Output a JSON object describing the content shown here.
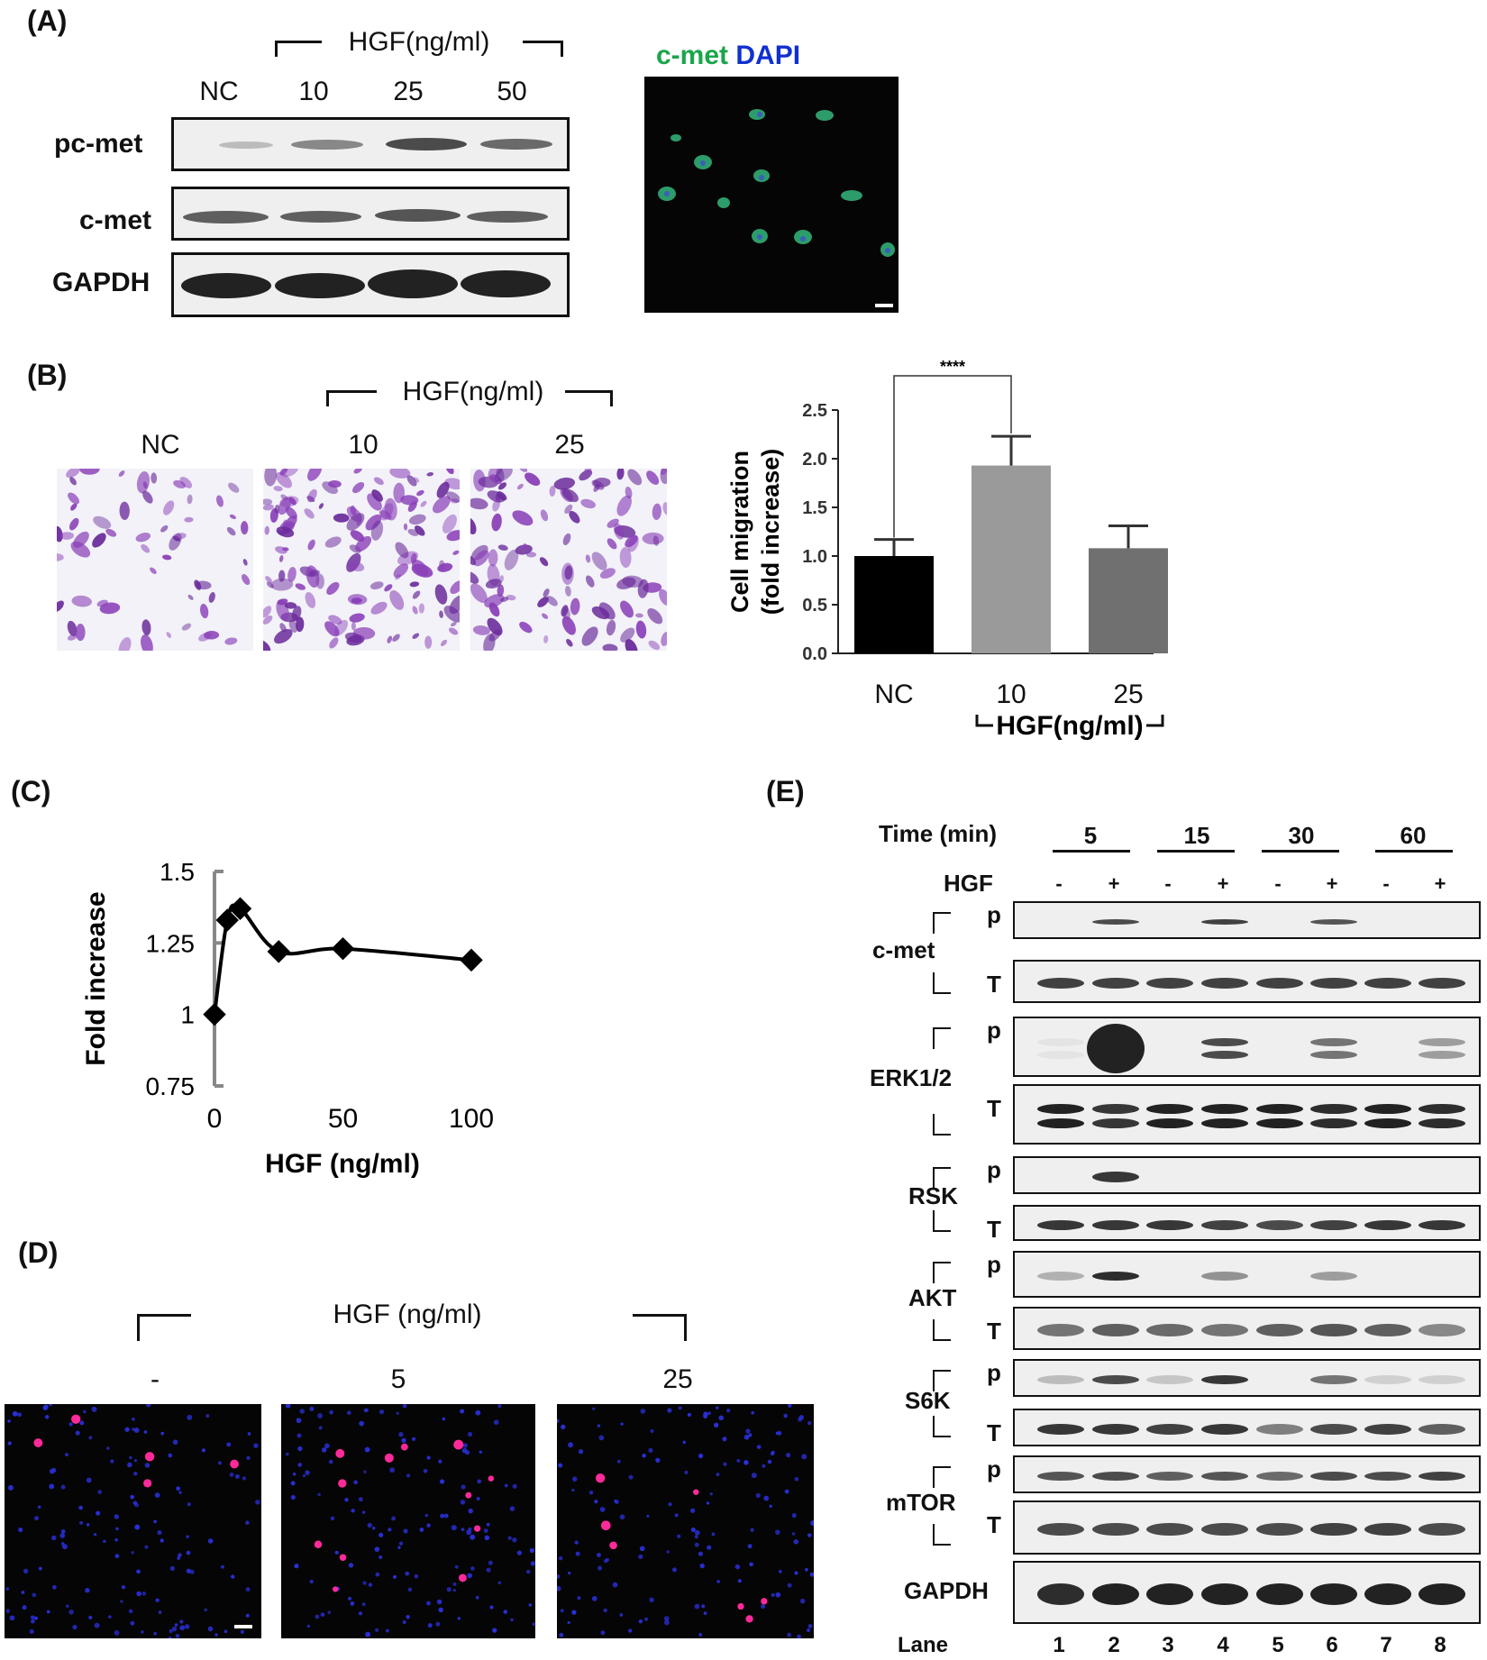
{
  "panelA": {
    "label": "(A)",
    "hgf_header": "HGF(ng/ml)",
    "lanes": [
      "NC",
      "10",
      "25",
      "50"
    ],
    "rows": [
      "pc-met",
      "c-met",
      "GAPDH"
    ],
    "fluor_label_green": "c-met",
    "fluor_label_blue": "DAPI"
  },
  "panelB": {
    "label": "(B)",
    "hgf_header": "HGF(ng/ml)",
    "lanes": [
      "NC",
      "10",
      "25"
    ],
    "significance": "****",
    "hgf_footer": "HGF(ng/ml)"
  },
  "panelC": {
    "label": "(C)"
  },
  "panelD": {
    "label": "(D)",
    "hgf_header": "HGF (ng/ml)",
    "lanes": [
      "-",
      "5",
      "25"
    ]
  },
  "panelE": {
    "label": "(E)",
    "time_label": "Time  (min)",
    "times": [
      "5",
      "15",
      "30",
      "60"
    ],
    "hgf_label": "HGF",
    "signs": [
      "-",
      "+",
      "-",
      "+",
      "-",
      "+",
      "-",
      "+"
    ],
    "proteins": [
      "c-met",
      "ERK1/2",
      "RSK",
      "AKT",
      "S6K",
      "mTOR"
    ],
    "p_label": "p",
    "t_label": "T",
    "gapdh": "GAPDH",
    "lane_label": "Lane",
    "lane_numbers": [
      "1",
      "2",
      "3",
      "4",
      "5",
      "6",
      "7",
      "8"
    ]
  },
  "chart_data": [
    {
      "type": "bar",
      "categories": [
        "NC",
        "10",
        "25"
      ],
      "values": [
        1.0,
        1.93,
        1.08
      ],
      "errors": [
        0.17,
        0.3,
        0.23
      ],
      "colors": [
        "#000000",
        "#9a9a9a",
        "#707070"
      ],
      "title": "",
      "xlabel": "HGF(ng/ml)",
      "ylabel": "Cell migration (fold increase)",
      "ylim": [
        0.0,
        2.5
      ],
      "yticks": [
        "0.0",
        "0.5",
        "1.0",
        "1.5",
        "2.0",
        "2.5"
      ]
    },
    {
      "type": "line",
      "x": [
        0,
        5,
        10,
        25,
        50,
        100
      ],
      "y": [
        1.0,
        1.33,
        1.37,
        1.22,
        1.23,
        1.19
      ],
      "title": "",
      "xlabel": "HGF (ng/ml)",
      "ylabel": "Fold increase",
      "xlim": [
        0,
        100
      ],
      "ylim": [
        0.75,
        1.5
      ],
      "xticks": [
        "0",
        "50",
        "100"
      ],
      "yticks": [
        "0.75",
        "1",
        "1.25",
        "1.5"
      ]
    }
  ]
}
